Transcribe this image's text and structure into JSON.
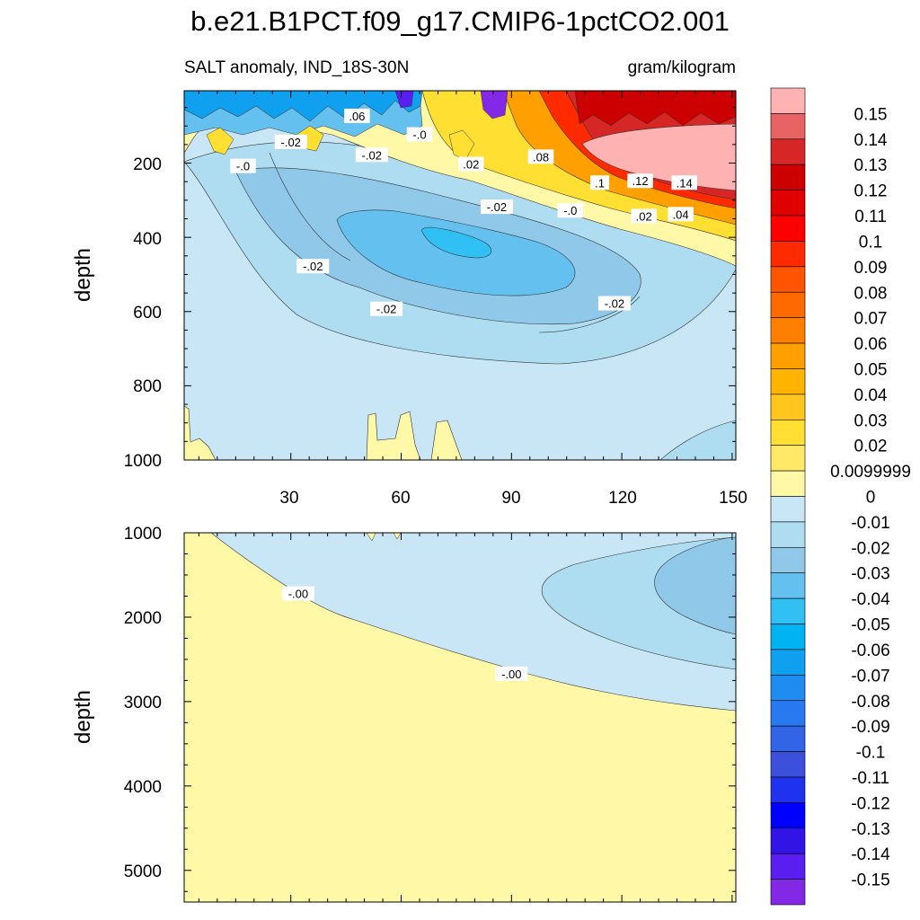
{
  "title": "b.e21.B1PCT.f09_g17.CMIP6-1pctCO2.001",
  "chart_data": [
    {
      "type": "contour",
      "panel": "upper",
      "left_string": "SALT anomaly, IND_18S-30N",
      "right_string": "gram/kilogram",
      "xlabel": "",
      "ylabel": "depth",
      "xlim": [
        1,
        151
      ],
      "ylim": [
        1000,
        5
      ],
      "xticks": [
        30,
        60,
        90,
        120,
        150
      ],
      "yticks": [
        200,
        400,
        600,
        800,
        1000
      ],
      "contour_labels": [
        {
          "text": ".06",
          "x": 48,
          "y": 75
        },
        {
          "text": "-.02",
          "x": 30,
          "y": 145
        },
        {
          "text": "-.0",
          "x": 65,
          "y": 125
        },
        {
          "text": "-.0",
          "x": 17,
          "y": 210
        },
        {
          "text": "-.02",
          "x": 52,
          "y": 180
        },
        {
          "text": ".02",
          "x": 79,
          "y": 205
        },
        {
          "text": ".08",
          "x": 98,
          "y": 185
        },
        {
          "text": ".1",
          "x": 114,
          "y": 255
        },
        {
          "text": ".12",
          "x": 125,
          "y": 250
        },
        {
          "text": ".14",
          "x": 137,
          "y": 255
        },
        {
          "text": "-.02",
          "x": 86,
          "y": 320
        },
        {
          "text": "-.0",
          "x": 106,
          "y": 330
        },
        {
          "text": ".02",
          "x": 126,
          "y": 345
        },
        {
          "text": ".04",
          "x": 136,
          "y": 340
        },
        {
          "text": "-.02",
          "x": 36,
          "y": 480
        },
        {
          "text": "-.02",
          "x": 56,
          "y": 595
        },
        {
          "text": "-.02",
          "x": 118,
          "y": 580
        }
      ]
    },
    {
      "type": "contour",
      "panel": "lower",
      "xlabel": "",
      "ylabel": "depth",
      "xlim": [
        1,
        151
      ],
      "ylim": [
        5375,
        1000
      ],
      "yticks": [
        1000,
        2000,
        3000,
        4000,
        5000
      ],
      "contour_labels": [
        {
          "text": "-.00",
          "x": 32,
          "y": 1730
        },
        {
          "text": "-.00",
          "x": 90,
          "y": 2680
        }
      ]
    }
  ],
  "colorbar": {
    "labels": [
      "0.15",
      "0.14",
      "0.13",
      "0.12",
      "0.11",
      "0.1",
      "0.09",
      "0.08",
      "0.07",
      "0.06",
      "0.05",
      "0.04",
      "0.03",
      "0.02",
      "0.0099999",
      "0",
      "-0.01",
      "-0.02",
      "-0.03",
      "-0.04",
      "-0.05",
      "-0.06",
      "-0.07",
      "-0.08",
      "-0.09",
      "-0.1",
      "-0.11",
      "-0.12",
      "-0.13",
      "-0.14",
      "-0.15"
    ],
    "colors": [
      "#ffb2b2",
      "#e86464",
      "#d62626",
      "#cc0000",
      "#e00000",
      "#ff0000",
      "#ff2a00",
      "#ff5500",
      "#ff6a00",
      "#ff8000",
      "#ffa000",
      "#ffb400",
      "#ffc61e",
      "#ffdf32",
      "#ffe966",
      "#fff8a6",
      "#c8e6f5",
      "#aedcf0",
      "#90c8ea",
      "#64c0ef",
      "#30c0f4",
      "#00b4f4",
      "#10a0f0",
      "#1e8cf0",
      "#2878f0",
      "#3264e6",
      "#3c50dc",
      "#1e32f0",
      "#0000ff",
      "#3214e6",
      "#5a1ef0",
      "#8228e6"
    ]
  }
}
